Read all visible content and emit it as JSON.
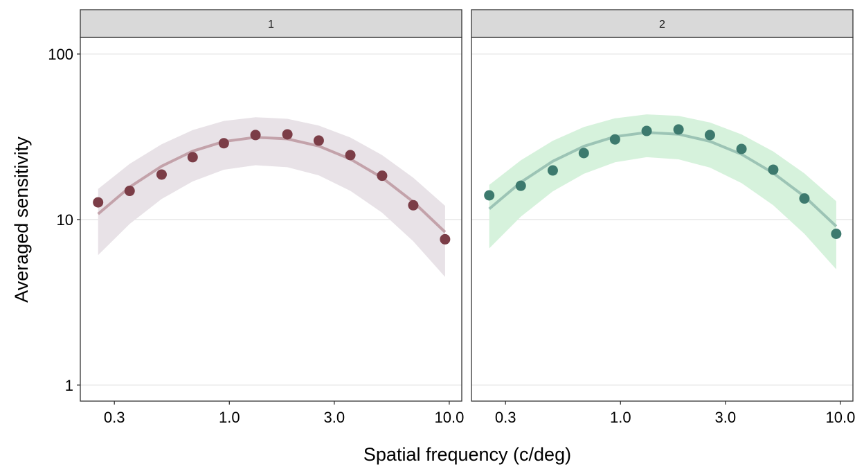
{
  "chart_data": {
    "type": "scatter",
    "facet_type": "faceted scatter with fitted curve and confidence ribbon",
    "xlabel": "Spatial frequency (c/deg)",
    "ylabel": "Averaged sensitivity",
    "x_scale": "log10",
    "y_scale": "log10",
    "xlim": [
      0.21,
      11.4
    ],
    "ylim": [
      0.8,
      126
    ],
    "x_ticks": [
      0.3,
      1.0,
      3.0,
      10.0
    ],
    "x_tick_labels": [
      "0.3",
      "1.0",
      "3.0",
      "10.0"
    ],
    "y_ticks": [
      1,
      10,
      100
    ],
    "y_tick_labels": [
      "1",
      "10",
      "100"
    ],
    "grid": "horizontal major",
    "legend": "none",
    "panels": [
      {
        "strip_label": "1",
        "point_color": "#7b3d47",
        "line_color": "#c3a2aa",
        "ribbon_color": "#e8e2e7",
        "x": [
          0.253,
          0.352,
          0.492,
          0.681,
          0.944,
          1.315,
          1.836,
          2.55,
          3.55,
          4.95,
          6.86,
          9.57
        ],
        "y": [
          12.7,
          14.9,
          18.7,
          23.8,
          28.9,
          32.4,
          32.7,
          30.0,
          24.5,
          18.4,
          12.2,
          7.6
        ],
        "fit": [
          10.8,
          15.7,
          21.0,
          25.9,
          29.6,
          31.4,
          30.7,
          27.8,
          23.2,
          17.9,
          12.8,
          8.4
        ],
        "fit_upper": [
          15.3,
          21.7,
          28.5,
          34.7,
          39.4,
          41.5,
          40.6,
          37.0,
          31.3,
          24.5,
          17.9,
          12.1
        ],
        "fit_lower": [
          6.1,
          9.4,
          13.3,
          17.0,
          20.0,
          21.3,
          20.7,
          18.5,
          14.9,
          11.0,
          7.4,
          4.5
        ]
      },
      {
        "strip_label": "2",
        "point_color": "#3d7a6e",
        "line_color": "#9cc4b5",
        "ribbon_color": "#d6f2dc",
        "x": [
          0.253,
          0.352,
          0.492,
          0.681,
          0.944,
          1.315,
          1.836,
          2.55,
          3.55,
          4.95,
          6.86,
          9.57
        ],
        "y": [
          14.0,
          16.0,
          19.8,
          25.2,
          30.5,
          34.3,
          35.0,
          32.4,
          26.7,
          20.0,
          13.4,
          8.2
        ],
        "fit": [
          11.6,
          16.8,
          22.5,
          27.7,
          31.7,
          33.6,
          32.8,
          29.7,
          24.8,
          19.1,
          13.8,
          9.1
        ],
        "fit_upper": [
          16.2,
          22.8,
          29.9,
          36.2,
          40.9,
          43.2,
          42.3,
          38.6,
          32.7,
          25.8,
          19.0,
          12.9
        ],
        "fit_lower": [
          6.7,
          10.4,
          14.8,
          18.9,
          22.2,
          23.8,
          23.1,
          20.6,
          16.6,
          12.2,
          8.2,
          5.0
        ]
      }
    ]
  }
}
